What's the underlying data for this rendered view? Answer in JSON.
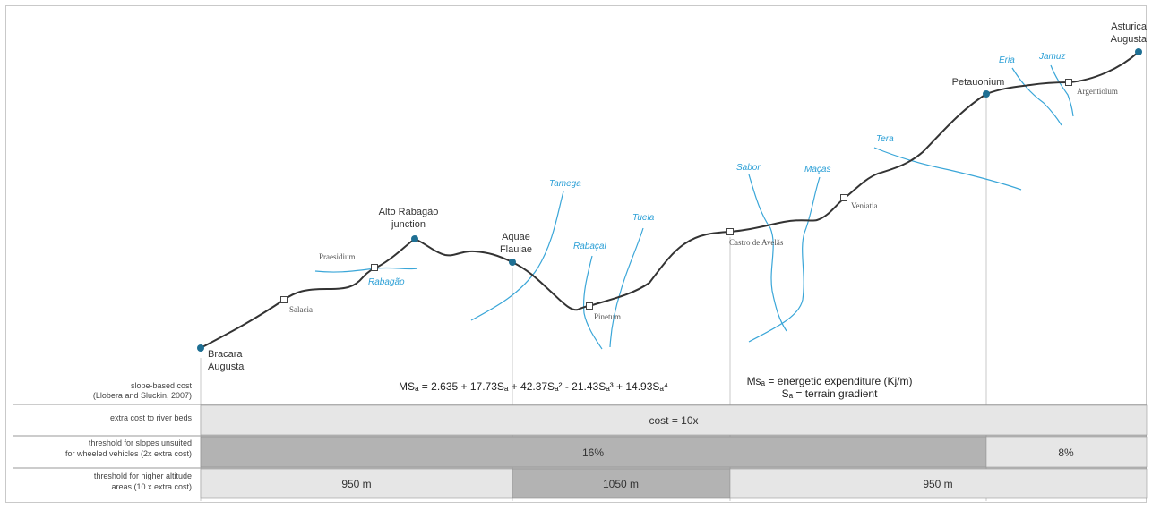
{
  "places": {
    "bracara": [
      "Bracara",
      "Augusta"
    ],
    "alto_rabagao": [
      "Alto Rabagão",
      "junction"
    ],
    "aquae_flauiae": [
      "Aquae",
      "Flauiae"
    ],
    "petauonium": "Petauonium",
    "asturica": [
      "Asturica",
      "Augusta"
    ]
  },
  "stations": {
    "salacia": "Salacia",
    "praesidium": "Praesidium",
    "pinetum": "Pinetum",
    "castro_de_avelas": "Castro de Avelãs",
    "veniatia": "Veniatia",
    "argentiolum": "Argentiolum"
  },
  "rivers": {
    "rabagao": "Rabagão",
    "tamega": "Tamega",
    "rabacal": "Rabaçal",
    "tuela": "Tuela",
    "sabor": "Sabor",
    "macas": "Maças",
    "tera": "Tera",
    "eria": "Eria",
    "jamuz": "Jamuz"
  },
  "rows": {
    "slope": [
      "slope-based cost",
      "(Llobera and Sluckin, 2007)"
    ],
    "river": [
      "extra cost to river beds"
    ],
    "threshold": [
      "threshold for slopes unsuited",
      "for wheeled vehicles (2x extra cost)"
    ],
    "altitude": [
      "threshold for higher altitude",
      "areas (10 x extra cost)"
    ]
  },
  "formula": "MSₐ = 2.635 + 17.73Sₐ + 42.37Sₐ² - 21.43Sₐ³ + 14.93Sₐ⁴",
  "legend": [
    "Msₐ = energetic expenditure (Kj/m)",
    "Sₐ = terrain gradient"
  ],
  "cells": {
    "river_cost": "cost = 10x",
    "slope_16": "16%",
    "slope_8": "8%",
    "alt_950_a": "950 m",
    "alt_1050": "1050 m",
    "alt_950_b": "950 m"
  },
  "colors": {
    "route": "#333333",
    "river": "#3aa6d8",
    "node": "#1e6f93",
    "cell_light": "#e6e6e6",
    "cell_dark": "#b3b3b3"
  }
}
